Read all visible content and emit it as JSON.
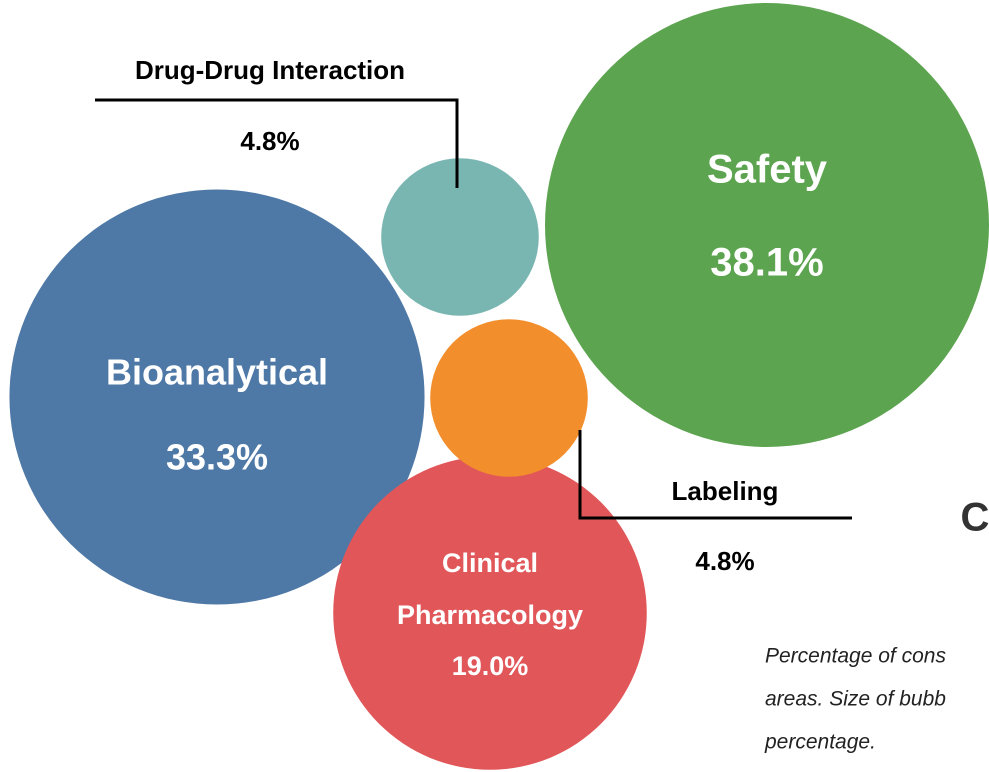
{
  "chart_data": {
    "type": "bubble",
    "categories": [
      "Bioanalytical",
      "Drug-Drug Interaction",
      "Safety",
      "Clinical Pharmacology",
      "Labeling"
    ],
    "values": [
      33.3,
      4.8,
      38.1,
      19.0,
      4.8
    ],
    "value_labels": [
      "33.3%",
      "4.8%",
      "38.1%",
      "19.0%",
      "4.8%"
    ],
    "colors": [
      "#4e78a6",
      "#79b6b2",
      "#5ca44f",
      "#e15759",
      "#f28e2c"
    ],
    "annotation": "C",
    "caption": [
      "Percentage of cons",
      "areas. Size of bubb",
      "percentage."
    ]
  }
}
